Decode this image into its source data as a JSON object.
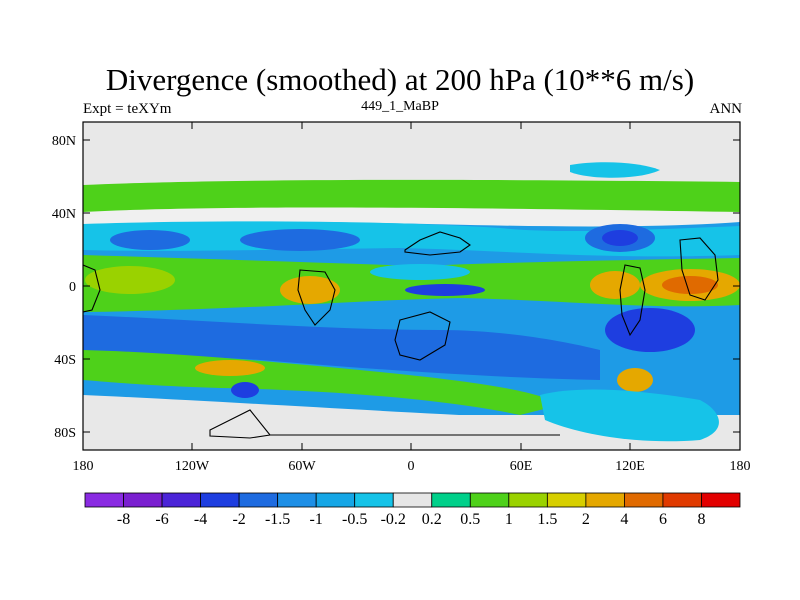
{
  "title": "Divergence (smoothed) at 200 hPa (10**6 m/s)",
  "subtitle_left": "Expt = teXYm",
  "subtitle_center": "449_1_MaBP",
  "subtitle_right": "ANN",
  "lat_ticks": [
    "80N",
    "40N",
    "0",
    "40S",
    "80S"
  ],
  "lon_ticks": [
    "180",
    "120W",
    "60W",
    "0",
    "60E",
    "120E",
    "180"
  ],
  "colorbar": {
    "colors": [
      "#8a2be2",
      "#7a1fd0",
      "#4b24d8",
      "#1e3ee0",
      "#1e6be0",
      "#1e8fe6",
      "#15a6e6",
      "#16c3e8",
      "#e6e6e6",
      "#00d08a",
      "#4ed11a",
      "#9ad200",
      "#d7cf00",
      "#e5a800",
      "#e06a00",
      "#e03a00",
      "#e20000"
    ],
    "labels": [
      "-8",
      "-6",
      "-4",
      "-2",
      "-1.5",
      "-1",
      "-0.5",
      "-0.2",
      "0.2",
      "0.5",
      "1",
      "1.5",
      "2",
      "4",
      "6",
      "8"
    ]
  }
}
